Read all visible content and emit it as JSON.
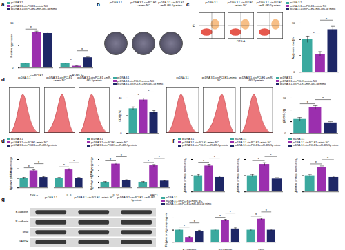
{
  "chart_data": [
    {
      "type": "bar",
      "panel": "a",
      "y_label": "Relative expression",
      "categories": [
        "circPCLE1",
        "miR-485-5p"
      ],
      "series": [
        {
          "name": "pcDNA 3.1",
          "color": "#3ba99f",
          "values": [
            1.0,
            1.0
          ],
          "errors": [
            0.1,
            0.1
          ]
        },
        {
          "name": "pcDNA 3.1-circPCLE1+mimic NC",
          "color": "#9b2fae",
          "values": [
            7.9,
            0.4
          ],
          "errors": [
            0.3,
            0.05
          ]
        },
        {
          "name": "pcDNA 3.1-circPCLE1+miR-485-5p mimic",
          "color": "#1e2766",
          "values": [
            7.7,
            2.3
          ],
          "errors": [
            0.3,
            0.15
          ]
        }
      ],
      "ylim": [
        0,
        10
      ],
      "yticks": [
        0,
        5,
        10
      ],
      "annotations": [
        {
          "text": "*",
          "category": "circPCLE1",
          "between": [
            "pcDNA 3.1",
            "pcDNA 3.1-circPCLE1+mimic NC"
          ]
        },
        {
          "text": "*",
          "category": "miR-485-5p",
          "between": [
            "pcDNA 3.1",
            "pcDNA 3.1-circPCLE1+mimic NC"
          ]
        },
        {
          "text": "*",
          "category": "miR-485-5p",
          "between": [
            "pcDNA 3.1-circPCLE1+mimic NC",
            "pcDNA 3.1-circPCLE1+miR-485-5p mimic"
          ]
        }
      ]
    },
    {
      "type": "plates",
      "panel": "b",
      "labels": [
        "pcDNA 3.1",
        "pcDNA 3.1-circPCLE1 +mimic NC",
        "pcDNA 3.1-circPCLE1 +miR-485-5p mimic"
      ]
    },
    {
      "type": "flow_plots",
      "panel": "c",
      "labels": [
        "pcDNA 3.1",
        "pcDNA 3.1-circPCLE1 +mimic NC",
        "pcDNA 3.1-circPCLE1 +miR-485-5p mimic"
      ],
      "x_label": "FITC-A",
      "y_label": "PI"
    },
    {
      "type": "bar",
      "y_label": "Apoptosis rate (%)",
      "categories": [
        null
      ],
      "series": [
        {
          "name": "pcDNA 3.1",
          "color": "#3ba99f",
          "values": [
            20
          ],
          "errors": [
            2
          ]
        },
        {
          "name": "pcDNA 3.1-circPCLE1+mimic NC",
          "color": "#9b2fae",
          "values": [
            11
          ],
          "errors": [
            1.5
          ]
        },
        {
          "name": "pcDNA 3.1-circPCLE1+miR-485-5p mimic",
          "color": "#1e2766",
          "values": [
            26
          ],
          "errors": [
            2
          ]
        }
      ],
      "ylim": [
        0,
        30
      ],
      "yticks": [
        0,
        10,
        20,
        30
      ],
      "annotations": [
        {
          "text": "*",
          "between": [
            "pcDNA 3.1",
            "pcDNA 3.1-circPCLE1+mimic NC"
          ]
        },
        {
          "text": "*",
          "between": [
            "pcDNA 3.1-circPCLE1+mimic NC",
            "pcDNA 3.1-circPCLE1+miR-485-5p mimic"
          ]
        }
      ]
    },
    {
      "type": "overlay_histograms",
      "panel": "d",
      "labels": [
        "pcDNA 3.1",
        "pcDNA 3.1-circPCLE1 +mimic NC",
        "pcDNA 3.1-circPCLE1 +miR-485-5p mimic"
      ]
    },
    {
      "type": "bar",
      "y_label": "CD86 (%)",
      "categories": [
        null
      ],
      "series": [
        {
          "name": "pcDNA 3.1",
          "color": "#3ba99f",
          "values": [
            28
          ],
          "errors": [
            2
          ]
        },
        {
          "name": "pcDNA 3.1-circPCLE1+mimic NC",
          "color": "#9b2fae",
          "values": [
            38
          ],
          "errors": [
            2
          ]
        },
        {
          "name": "pcDNA 3.1-circPCLE1+miR-485-5p mimic",
          "color": "#1e2766",
          "values": [
            24
          ],
          "errors": [
            2
          ]
        }
      ],
      "ylim": [
        0,
        40
      ],
      "yticks": [
        0,
        20,
        40
      ],
      "annotations": [
        {
          "text": "*",
          "between": [
            "pcDNA 3.1",
            "pcDNA 3.1-circPCLE1+mimic NC"
          ]
        },
        {
          "text": "*",
          "between": [
            "pcDNA 3.1-circPCLE1+mimic NC",
            "pcDNA 3.1-circPCLE1+miR-485-5p mimic"
          ]
        }
      ]
    },
    {
      "type": "overlay_histograms",
      "labels": [
        "pcDNA 3.1",
        "pcDNA 3.1-circPCLE1 +mimic NC",
        "pcDNA 3.1-circPCLE1 +miR-485-5p mimic"
      ]
    },
    {
      "type": "bar",
      "y_label": "CD206 (%)",
      "categories": [
        null
      ],
      "series": [
        {
          "name": "pcDNA 3.1",
          "color": "#3ba99f",
          "values": [
            12
          ],
          "errors": [
            1.5
          ]
        },
        {
          "name": "pcDNA 3.1-circPCLE1+mimic NC",
          "color": "#9b2fae",
          "values": [
            22
          ],
          "errors": [
            1.5
          ]
        },
        {
          "name": "pcDNA 3.1-circPCLE1+miR-485-5p mimic",
          "color": "#1e2766",
          "values": [
            9
          ],
          "errors": [
            1
          ]
        }
      ],
      "ylim": [
        0,
        30
      ],
      "yticks": [
        0,
        10,
        20,
        30
      ],
      "annotations": [
        {
          "text": "*",
          "between": [
            "pcDNA 3.1",
            "pcDNA 3.1-circPCLE1+mimic NC"
          ]
        },
        {
          "text": "*",
          "between": [
            "pcDNA 3.1-circPCLE1+mimic NC",
            "pcDNA 3.1-circPCLE1+miR-485-5p mimic"
          ]
        }
      ]
    },
    {
      "type": "bar",
      "panel": "d",
      "y_label": "Relative mRNA expression",
      "categories": [
        "TNF-α",
        "IL-6"
      ],
      "series": [
        {
          "name": "pcDNA 3.1",
          "color": "#3ba99f",
          "values": [
            1.0,
            1.0
          ],
          "errors": [
            0.1,
            0.1
          ]
        },
        {
          "name": "pcDNA 3.1-circPCLE1+mimic NC",
          "color": "#9b2fae",
          "values": [
            1.8,
            1.9
          ],
          "errors": [
            0.1,
            0.1
          ]
        },
        {
          "name": "pcDNA 3.1-circPCLE1+miR-485-5p mimic",
          "color": "#1e2766",
          "values": [
            1.1,
            1.0
          ],
          "errors": [
            0.1,
            0.1
          ]
        }
      ],
      "ylim": [
        0,
        3
      ],
      "yticks": [
        0,
        1,
        2,
        3
      ],
      "annotations": [
        {
          "text": "*",
          "category": "TNF-α",
          "between": [
            "pcDNA 3.1",
            "pcDNA 3.1-circPCLE1+mimic NC"
          ]
        },
        {
          "text": "*",
          "category": "TNF-α",
          "between": [
            "pcDNA 3.1-circPCLE1+mimic NC",
            "pcDNA 3.1-circPCLE1+miR-485-5p mimic"
          ]
        },
        {
          "text": "*",
          "category": "IL-6",
          "between": [
            "pcDNA 3.1",
            "pcDNA 3.1-circPCLE1+mimic NC"
          ]
        },
        {
          "text": "*",
          "category": "IL-6",
          "between": [
            "pcDNA 3.1-circPCLE1+mimic NC",
            "pcDNA 3.1-circPCLE1+miR-485-5p mimic"
          ]
        }
      ]
    },
    {
      "type": "bar",
      "y_label": "Relative mRNA expression",
      "categories": [
        "IL-10",
        "MRC1"
      ],
      "series": [
        {
          "name": "pcDNA 3.1",
          "color": "#3ba99f",
          "values": [
            1.0,
            1.0
          ],
          "errors": [
            0.1,
            0.1
          ]
        },
        {
          "name": "pcDNA 3.1-circPCLE1+mimic NC",
          "color": "#9b2fae",
          "values": [
            4.2,
            3.9
          ],
          "errors": [
            0.2,
            0.2
          ]
        },
        {
          "name": "pcDNA 3.1-circPCLE1+miR-485-5p mimic",
          "color": "#1e2766",
          "values": [
            1.3,
            1.2
          ],
          "errors": [
            0.1,
            0.1
          ]
        }
      ],
      "ylim": [
        0,
        5
      ],
      "yticks": [
        0,
        1,
        2,
        3,
        4,
        5
      ],
      "annotations": [
        {
          "text": "*",
          "category": "IL-10",
          "between": [
            "pcDNA 3.1",
            "pcDNA 3.1-circPCLE1+mimic NC"
          ]
        },
        {
          "text": "*",
          "category": "IL-10",
          "between": [
            "pcDNA 3.1-circPCLE1+mimic NC",
            "pcDNA 3.1-circPCLE1+miR-485-5p mimic"
          ]
        },
        {
          "text": "*",
          "category": "MRC1",
          "between": [
            "pcDNA 3.1",
            "pcDNA 3.1-circPCLE1+mimic NC"
          ]
        },
        {
          "text": "*",
          "category": "MRC1",
          "between": [
            "pcDNA 3.1-circPCLE1+mimic NC",
            "pcDNA 3.1-circPCLE1+miR-485-5p mimic"
          ]
        }
      ]
    },
    {
      "type": "bar",
      "panel": "f",
      "y_label": "Relative protein expression",
      "categories": [
        null
      ],
      "series": [
        {
          "name": "pcDNA 3.1",
          "color": "#3ba99f",
          "values": [
            1.0
          ],
          "errors": [
            0.08
          ]
        },
        {
          "name": "pcDNA 3.1-circPCLE1+mimic NC",
          "color": "#9b2fae",
          "values": [
            1.6
          ],
          "errors": [
            0.1
          ]
        },
        {
          "name": "pcDNA 3.1-circPCLE1+miR-485-5p mimic",
          "color": "#1e2766",
          "values": [
            0.9
          ],
          "errors": [
            0.08
          ]
        }
      ],
      "ylim": [
        0,
        2
      ],
      "yticks": [
        0,
        1,
        2
      ],
      "annotations": [
        {
          "text": "*",
          "between": [
            "pcDNA 3.1",
            "pcDNA 3.1-circPCLE1+mimic NC"
          ]
        },
        {
          "text": "*",
          "between": [
            "pcDNA 3.1-circPCLE1+mimic NC",
            "pcDNA 3.1-circPCLE1+miR-485-5p mimic"
          ]
        }
      ]
    },
    {
      "type": "bar",
      "y_label": "Relative protein expression",
      "categories": [
        null
      ],
      "series": [
        {
          "name": "pcDNA 3.1",
          "color": "#3ba99f",
          "values": [
            1.0
          ],
          "errors": [
            0.08
          ]
        },
        {
          "name": "pcDNA 3.1-circPCLE1+mimic NC",
          "color": "#9b2fae",
          "values": [
            1.7
          ],
          "errors": [
            0.1
          ]
        },
        {
          "name": "pcDNA 3.1-circPCLE1+miR-485-5p mimic",
          "color": "#1e2766",
          "values": [
            0.8
          ],
          "errors": [
            0.08
          ]
        }
      ],
      "ylim": [
        0,
        2
      ],
      "yticks": [
        0,
        1,
        2
      ],
      "annotations": [
        {
          "text": "*",
          "between": [
            "pcDNA 3.1",
            "pcDNA 3.1-circPCLE1+mimic NC"
          ]
        },
        {
          "text": "*",
          "between": [
            "pcDNA 3.1-circPCLE1+mimic NC",
            "pcDNA 3.1-circPCLE1+miR-485-5p mimic"
          ]
        }
      ]
    },
    {
      "type": "bar",
      "y_label": "Relative protein expression",
      "categories": [
        null
      ],
      "series": [
        {
          "name": "pcDNA 3.1",
          "color": "#3ba99f",
          "values": [
            1.0
          ],
          "errors": [
            0.08
          ]
        },
        {
          "name": "pcDNA 3.1-circPCLE1+mimic NC",
          "color": "#9b2fae",
          "values": [
            1.5
          ],
          "errors": [
            0.1
          ]
        },
        {
          "name": "pcDNA 3.1-circPCLE1+miR-485-5p mimic",
          "color": "#1e2766",
          "values": [
            0.9
          ],
          "errors": [
            0.08
          ]
        }
      ],
      "ylim": [
        0,
        2
      ],
      "yticks": [
        0,
        1,
        2
      ],
      "annotations": [
        {
          "text": "*",
          "between": [
            "pcDNA 3.1",
            "pcDNA 3.1-circPCLE1+mimic NC"
          ]
        },
        {
          "text": "*",
          "between": [
            "pcDNA 3.1-circPCLE1+mimic NC",
            "pcDNA 3.1-circPCLE1+miR-485-5p mimic"
          ]
        }
      ]
    },
    {
      "type": "blot",
      "panel": "g",
      "columns": [
        "pcDNA 3.1",
        "pcDNA 3.1-circPCLE1 +mimic NC",
        "pcDNA 3.1-circPCLE1 +miR-485-5p mimic"
      ],
      "rows": [
        "E-cadherin",
        "N-cadherin",
        "Snail",
        "GAPDH"
      ]
    },
    {
      "type": "bar",
      "y_label": "Relative protein expression",
      "categories": [
        "E-cadherin",
        "N-cadherin",
        "Snail"
      ],
      "series": [
        {
          "name": "pcDNA 3.1",
          "color": "#3ba99f",
          "values": [
            1.0,
            1.0,
            1.0
          ],
          "errors": [
            0.08,
            0.08,
            0.08
          ]
        },
        {
          "name": "pcDNA 3.1-circPCLE1+mimic NC",
          "color": "#9b2fae",
          "values": [
            0.4,
            1.8,
            1.9
          ],
          "errors": [
            0.05,
            0.08,
            0.08
          ]
        },
        {
          "name": "pcDNA 3.1-circPCLE1+miR-485-5p mimic",
          "color": "#1e2766",
          "values": [
            0.9,
            1.1,
            1.0
          ],
          "errors": [
            0.08,
            0.08,
            0.08
          ]
        }
      ],
      "ylim": [
        0,
        2
      ],
      "yticks": [
        0,
        1,
        2
      ],
      "annotations": [
        {
          "text": "*",
          "category": "E-cadherin",
          "between": [
            "pcDNA 3.1",
            "pcDNA 3.1-circPCLE1+mimic NC"
          ]
        },
        {
          "text": "*",
          "category": "E-cadherin",
          "between": [
            "pcDNA 3.1-circPCLE1+mimic NC",
            "pcDNA 3.1-circPCLE1+miR-485-5p mimic"
          ]
        },
        {
          "text": "*",
          "category": "N-cadherin",
          "between": [
            "pcDNA 3.1",
            "pcDNA 3.1-circPCLE1+mimic NC"
          ]
        },
        {
          "text": "*",
          "category": "N-cadherin",
          "between": [
            "pcDNA 3.1-circPCLE1+mimic NC",
            "pcDNA 3.1-circPCLE1+miR-485-5p mimic"
          ]
        },
        {
          "text": "*",
          "category": "Snail",
          "between": [
            "pcDNA 3.1",
            "pcDNA 3.1-circPCLE1+mimic NC"
          ]
        },
        {
          "text": "*",
          "category": "Snail",
          "between": [
            "pcDNA 3.1-circPCLE1+mimic NC",
            "pcDNA 3.1-circPCLE1+miR-485-5p mimic"
          ]
        }
      ]
    }
  ]
}
